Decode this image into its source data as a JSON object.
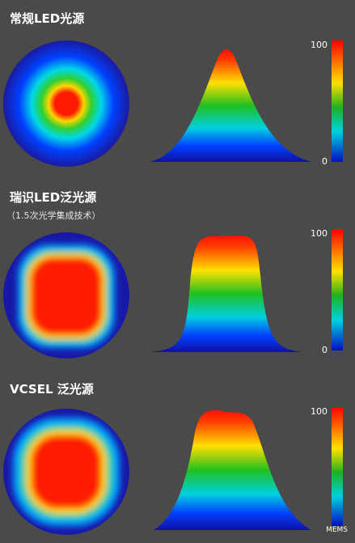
{
  "panels": [
    {
      "title": "常规LED光源",
      "scale": {
        "max": 100,
        "min": 0
      }
    },
    {
      "title": "瑞识LED泛光源",
      "subtitle": "（1.5次光学集成技术）",
      "scale": {
        "max": 100,
        "min": 0
      }
    },
    {
      "title": "VCSEL 泛光源",
      "scale": {
        "max": 100
      }
    }
  ],
  "watermark": "MEMS"
}
